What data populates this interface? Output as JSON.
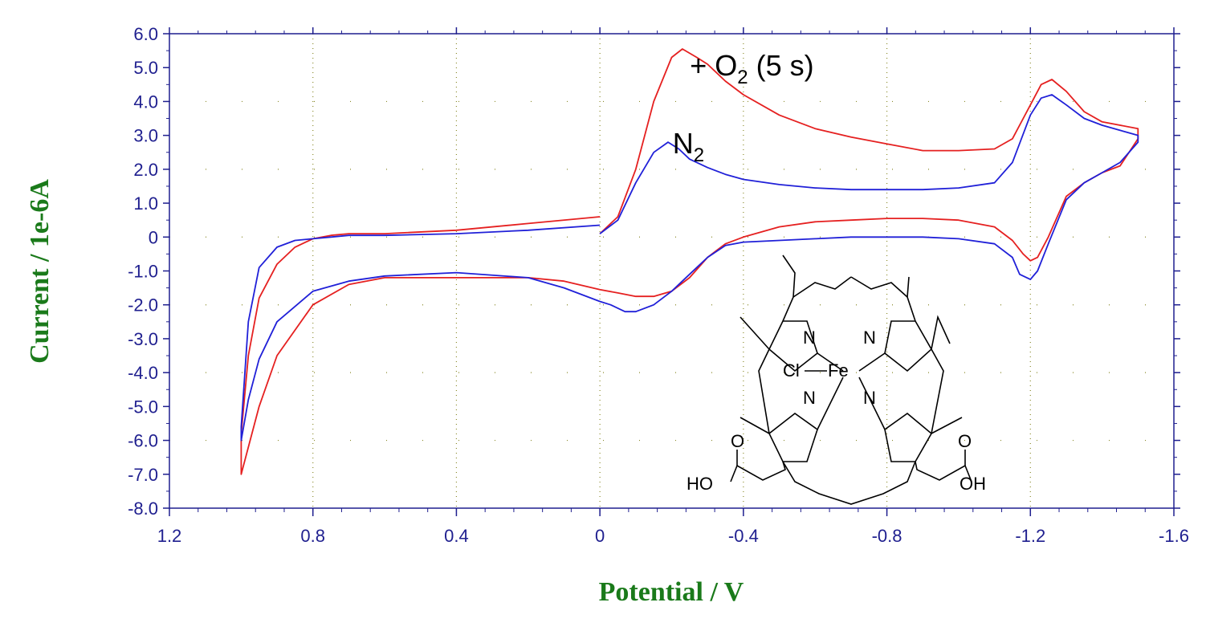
{
  "chart_data": {
    "type": "line",
    "xlabel": "Potential / V",
    "ylabel": "Current / 1e-6A",
    "xlim": [
      1.2,
      -1.6
    ],
    "ylim": [
      -8.0,
      6.0
    ],
    "x_reversed": true,
    "grid": true,
    "x_ticks": [
      "1.2",
      "0.8",
      "0.4",
      "0",
      "-0.4",
      "-0.8",
      "-1.2",
      "-1.6"
    ],
    "x_tick_values": [
      1.2,
      0.8,
      0.4,
      0,
      -0.4,
      -0.8,
      -1.2,
      -1.6
    ],
    "y_ticks": [
      "6.0",
      "5.0",
      "4.0",
      "3.0",
      "2.0",
      "1.0",
      "0",
      "-1.0",
      "-2.0",
      "-3.0",
      "-4.0",
      "-5.0",
      "-6.0",
      "-7.0",
      "-8.0"
    ],
    "y_tick_values": [
      6,
      5,
      4,
      3,
      2,
      1,
      0,
      -1,
      -2,
      -3,
      -4,
      -5,
      -6,
      -7,
      -8
    ],
    "series": [
      {
        "color": "#e52020",
        "x": [
          0.0,
          -0.05,
          -0.1,
          -0.15,
          -0.2,
          -0.23,
          -0.27,
          -0.3,
          -0.35,
          -0.4,
          -0.5,
          -0.6,
          -0.7,
          -0.8,
          -0.9,
          -0.95,
          -1.0,
          -1.1,
          -1.15,
          -1.2,
          -1.23,
          -1.26,
          -1.3,
          -1.35,
          -1.4,
          -1.5,
          -1.5,
          -1.45,
          -1.4,
          -1.35,
          -1.3,
          -1.25,
          -1.22,
          -1.2,
          -1.18,
          -1.15,
          -1.1,
          -1.0,
          -0.9,
          -0.8,
          -0.7,
          -0.6,
          -0.5,
          -0.4,
          -0.35,
          -0.3,
          -0.25,
          -0.2,
          -0.15,
          -0.1,
          -0.05,
          0.0,
          0.1,
          0.2,
          0.4,
          0.6,
          0.7,
          0.8,
          0.9,
          0.95,
          0.98,
          1.0,
          1.0,
          0.98,
          0.95,
          0.9,
          0.85,
          0.8,
          0.75,
          0.7,
          0.6,
          0.4,
          0.2,
          0.0
        ],
        "y": [
          0.1,
          0.6,
          2.0,
          4.0,
          5.3,
          5.55,
          5.3,
          5.1,
          4.6,
          4.2,
          3.6,
          3.2,
          2.95,
          2.75,
          2.55,
          2.55,
          2.55,
          2.6,
          2.9,
          3.9,
          4.5,
          4.65,
          4.3,
          3.7,
          3.4,
          3.2,
          2.9,
          2.1,
          1.9,
          1.6,
          1.2,
          0.0,
          -0.6,
          -0.7,
          -0.5,
          -0.1,
          0.3,
          0.5,
          0.55,
          0.55,
          0.5,
          0.45,
          0.3,
          0.0,
          -0.2,
          -0.6,
          -1.2,
          -1.6,
          -1.75,
          -1.75,
          -1.65,
          -1.55,
          -1.3,
          -1.2,
          -1.2,
          -1.2,
          -1.4,
          -2.0,
          -3.5,
          -5.0,
          -6.2,
          -7.0,
          -5.8,
          -3.5,
          -1.8,
          -0.8,
          -0.3,
          -0.05,
          0.05,
          0.1,
          0.1,
          0.2,
          0.4,
          0.6
        ]
      },
      {
        "color": "#2020d8",
        "x": [
          0.0,
          -0.05,
          -0.1,
          -0.15,
          -0.19,
          -0.22,
          -0.25,
          -0.3,
          -0.35,
          -0.4,
          -0.5,
          -0.6,
          -0.7,
          -0.8,
          -0.9,
          -1.0,
          -1.1,
          -1.15,
          -1.2,
          -1.23,
          -1.26,
          -1.3,
          -1.35,
          -1.4,
          -1.5,
          -1.5,
          -1.45,
          -1.4,
          -1.35,
          -1.3,
          -1.25,
          -1.22,
          -1.2,
          -1.17,
          -1.15,
          -1.1,
          -1.0,
          -0.9,
          -0.8,
          -0.7,
          -0.6,
          -0.5,
          -0.4,
          -0.35,
          -0.3,
          -0.25,
          -0.2,
          -0.15,
          -0.1,
          -0.07,
          -0.03,
          0.0,
          0.1,
          0.2,
          0.4,
          0.6,
          0.7,
          0.8,
          0.9,
          0.95,
          0.98,
          1.0,
          1.0,
          0.98,
          0.95,
          0.9,
          0.85,
          0.8,
          0.75,
          0.7,
          0.6,
          0.4,
          0.2,
          0.0
        ],
        "y": [
          0.1,
          0.5,
          1.6,
          2.5,
          2.8,
          2.6,
          2.3,
          2.05,
          1.85,
          1.7,
          1.55,
          1.45,
          1.4,
          1.4,
          1.4,
          1.45,
          1.6,
          2.2,
          3.6,
          4.1,
          4.2,
          3.9,
          3.5,
          3.3,
          3.0,
          2.8,
          2.2,
          1.9,
          1.6,
          1.1,
          -0.2,
          -1.0,
          -1.25,
          -1.1,
          -0.6,
          -0.2,
          -0.05,
          0.0,
          0.0,
          0.0,
          -0.05,
          -0.1,
          -0.15,
          -0.25,
          -0.6,
          -1.1,
          -1.6,
          -2.0,
          -2.2,
          -2.2,
          -2.0,
          -1.9,
          -1.5,
          -1.2,
          -1.05,
          -1.15,
          -1.3,
          -1.6,
          -2.5,
          -3.6,
          -4.8,
          -6.0,
          -5.6,
          -2.5,
          -0.9,
          -0.3,
          -0.1,
          -0.05,
          0.0,
          0.05,
          0.05,
          0.1,
          0.2,
          0.35
        ]
      }
    ],
    "annotations": [
      {
        "text": "+ O",
        "sub": "2",
        "suffix": " (5 s)",
        "x": -0.43,
        "y": 5.0
      },
      {
        "text": "N",
        "sub": "2",
        "suffix": "",
        "x": -0.27,
        "y": 2.8
      }
    ],
    "structure": {
      "atoms": [
        "N",
        "N",
        "N",
        "N",
        "Cl",
        "Fe",
        "O",
        "O",
        "HO",
        "OH"
      ]
    }
  }
}
